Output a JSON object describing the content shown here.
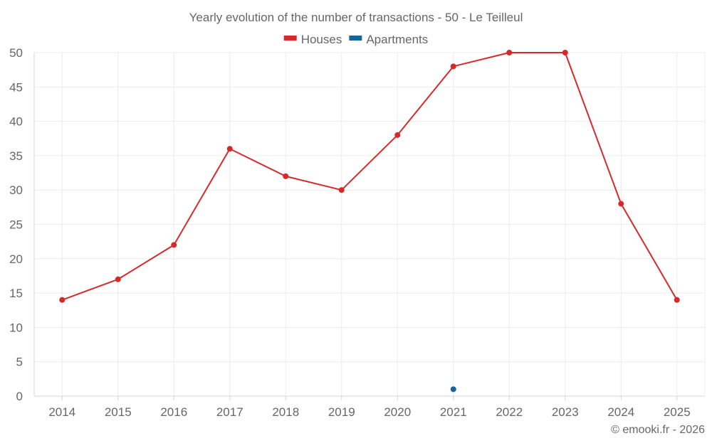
{
  "chart_data": {
    "type": "line",
    "title": "Yearly evolution of the number of transactions - 50 - Le Teilleul",
    "xlabel": "",
    "ylabel": "",
    "categories": [
      "2014",
      "2015",
      "2016",
      "2017",
      "2018",
      "2019",
      "2020",
      "2021",
      "2022",
      "2023",
      "2024",
      "2025"
    ],
    "ylim": [
      0,
      50
    ],
    "yticks": [
      0,
      5,
      10,
      15,
      20,
      25,
      30,
      35,
      40,
      45,
      50
    ],
    "grid": true,
    "legend_position": "top-center",
    "series": [
      {
        "name": "Houses",
        "color": "#d62a2a",
        "values": [
          14,
          17,
          22,
          36,
          32,
          30,
          38,
          48,
          50,
          50,
          28,
          14
        ]
      },
      {
        "name": "Apartments",
        "color": "#14669a",
        "values": [
          null,
          null,
          null,
          null,
          null,
          null,
          null,
          1,
          null,
          null,
          null,
          null
        ]
      }
    ]
  },
  "credit": "© emooki.fr - 2026"
}
